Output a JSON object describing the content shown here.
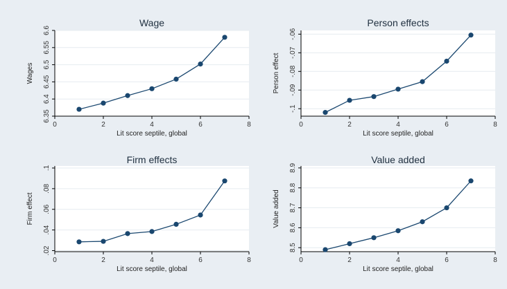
{
  "chart_data": [
    {
      "type": "line",
      "title": "Wage",
      "xlabel": "Lit score septile, global",
      "ylabel": "Wages",
      "x": [
        1,
        2,
        3,
        4,
        5,
        6,
        7
      ],
      "y": [
        6.37,
        6.388,
        6.41,
        6.43,
        6.458,
        6.502,
        6.58
      ],
      "xlim": [
        0,
        8
      ],
      "ylim": [
        6.35,
        6.6
      ],
      "xticks": [
        "0",
        "2",
        "4",
        "6",
        "8"
      ],
      "xtick_values": [
        0,
        2,
        4,
        6,
        8
      ],
      "yticks": [
        "6.35",
        "6.4",
        "6.45",
        "6.5",
        "6.55",
        "6.6"
      ],
      "ytick_values": [
        6.35,
        6.4,
        6.45,
        6.5,
        6.55,
        6.6
      ],
      "grid": true
    },
    {
      "type": "line",
      "title": "Person effects",
      "xlabel": "Lit score septile, global",
      "ylabel": "Person effect",
      "x": [
        1,
        2,
        3,
        4,
        5,
        6,
        7
      ],
      "y": [
        -0.102,
        -0.0955,
        -0.0935,
        -0.0895,
        -0.0855,
        -0.0745,
        -0.0605
      ],
      "xlim": [
        0,
        8
      ],
      "ylim": [
        -0.104,
        -0.058
      ],
      "xticks": [
        "0",
        "2",
        "4",
        "6",
        "8"
      ],
      "xtick_values": [
        0,
        2,
        4,
        6,
        8
      ],
      "yticks": [
        "-.1",
        "-.09",
        "-.08",
        "-.07",
        "-.06"
      ],
      "ytick_values": [
        -0.1,
        -0.09,
        -0.08,
        -0.07,
        -0.06
      ],
      "grid": true
    },
    {
      "type": "line",
      "title": "Firm effects",
      "xlabel": "Lit score septile, global",
      "ylabel": "Firm effect",
      "x": [
        1,
        2,
        3,
        4,
        5,
        6,
        7
      ],
      "y": [
        0.0285,
        0.029,
        0.0365,
        0.0385,
        0.0455,
        0.0545,
        0.0875
      ],
      "xlim": [
        0,
        8
      ],
      "ylim": [
        0.019,
        0.102
      ],
      "xticks": [
        "0",
        "2",
        "4",
        "6",
        "8"
      ],
      "xtick_values": [
        0,
        2,
        4,
        6,
        8
      ],
      "yticks": [
        ".02",
        ".04",
        ".06",
        ".08",
        ".1"
      ],
      "ytick_values": [
        0.02,
        0.04,
        0.06,
        0.08,
        0.1
      ],
      "grid": true
    },
    {
      "type": "line",
      "title": "Value added",
      "xlabel": "Lit score septile, global",
      "ylabel": "Value added",
      "x": [
        1,
        2,
        3,
        4,
        5,
        6,
        7
      ],
      "y": [
        8.49,
        8.52,
        8.55,
        8.585,
        8.63,
        8.7,
        8.835
      ],
      "xlim": [
        0,
        8
      ],
      "ylim": [
        8.48,
        8.91
      ],
      "xticks": [
        "0",
        "2",
        "4",
        "6",
        "8"
      ],
      "xtick_values": [
        0,
        2,
        4,
        6,
        8
      ],
      "yticks": [
        "8.5",
        "8.6",
        "8.7",
        "8.8",
        "8.9"
      ],
      "ytick_values": [
        8.5,
        8.6,
        8.7,
        8.8,
        8.9
      ],
      "grid": true
    }
  ],
  "colors": {
    "figure_background": "#e9eef3",
    "plot_background": "#ffffff",
    "grid": "#e6ecf0",
    "series": "#1a476f"
  }
}
